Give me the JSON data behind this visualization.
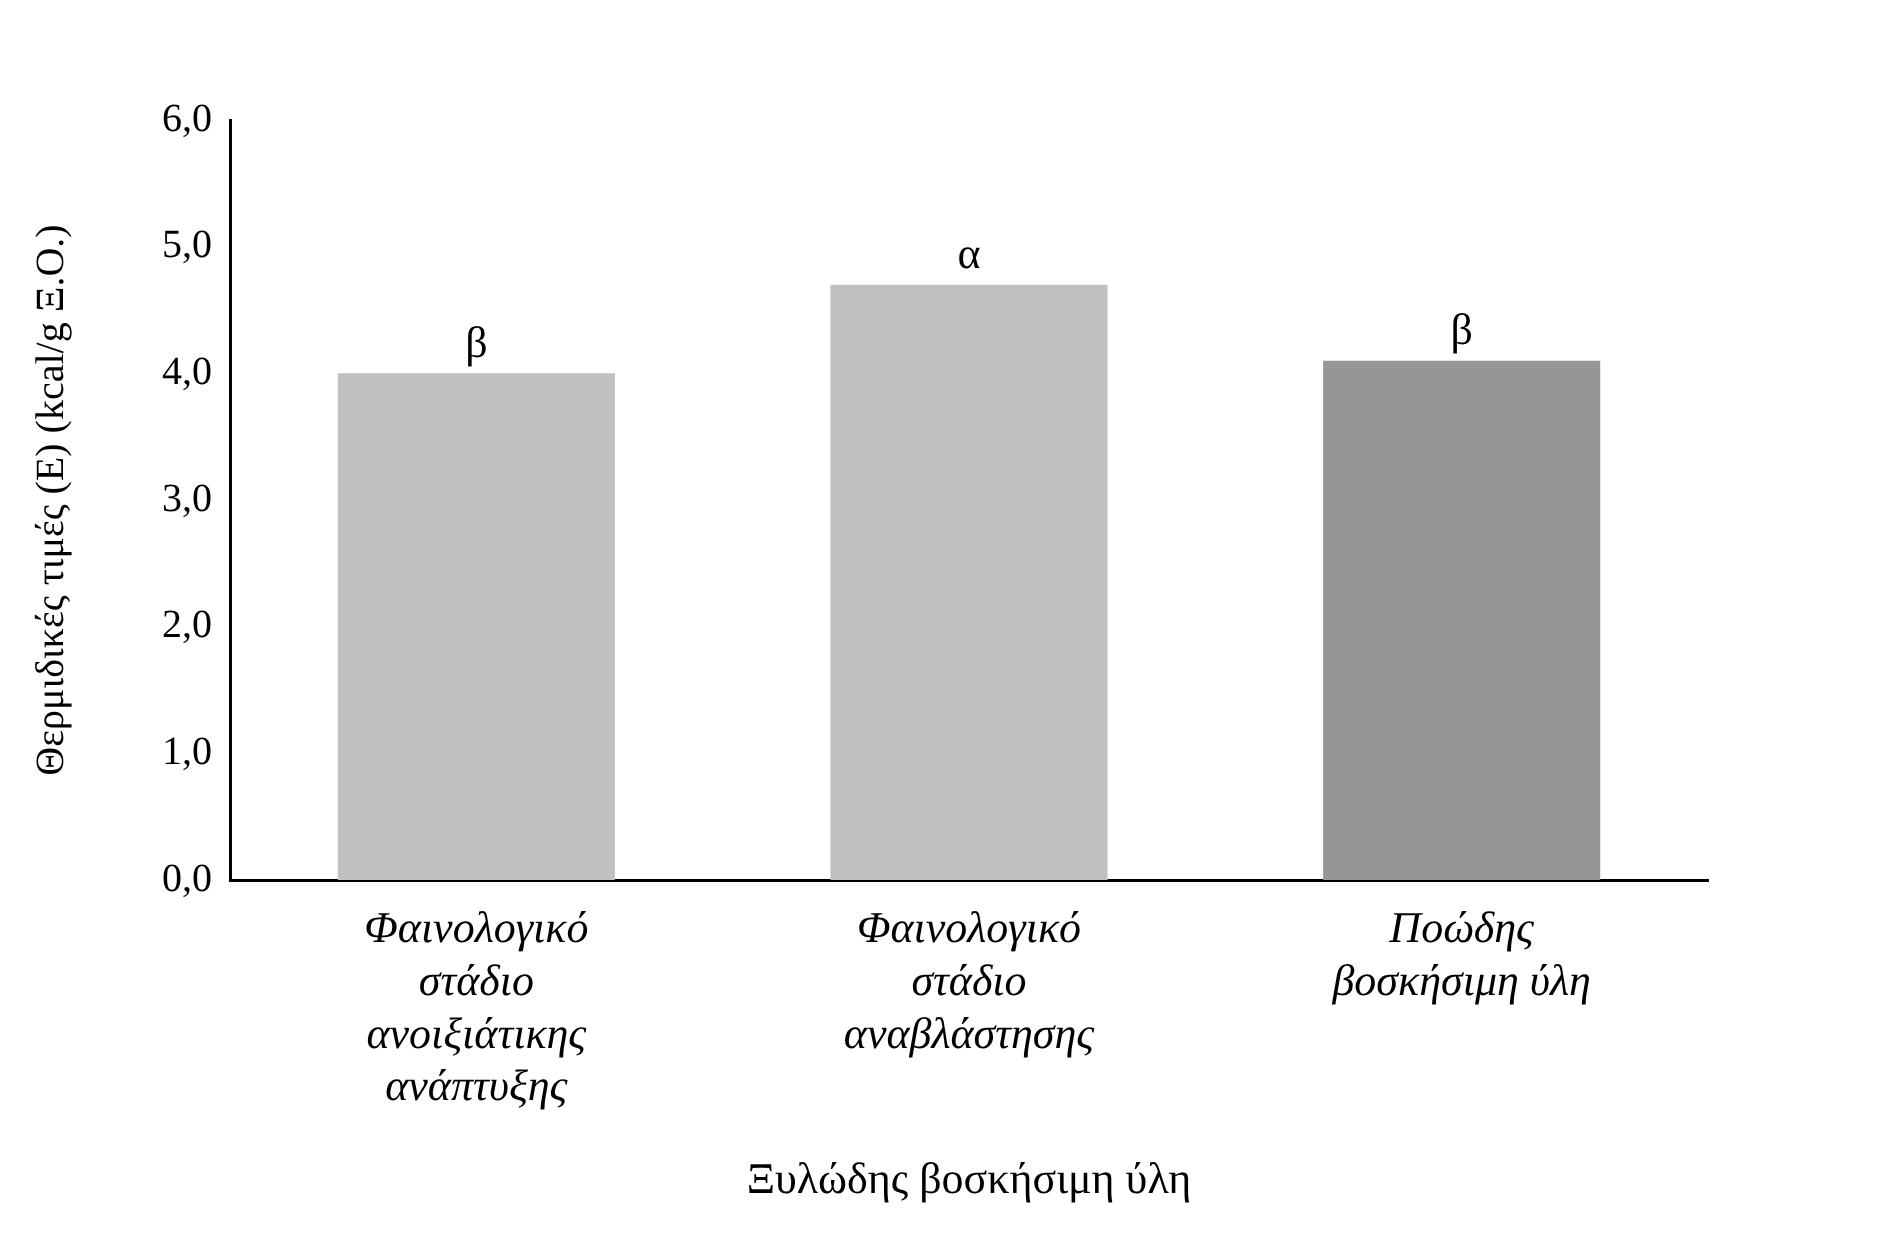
{
  "chart_data": {
    "type": "bar",
    "categories": [
      "Φαινολογικό στάδιο ανοιξιάτικης ανάπτυξης",
      "Φαινολογικό στάδιο αναβλάστησης",
      "Ποώδης βοσκήσιμη ύλη"
    ],
    "values": [
      4.0,
      4.7,
      4.1
    ],
    "colors": [
      "#c0c0c0",
      "#c0c0c0",
      "#969696"
    ],
    "xlabel": "Ξυλώδης βοσκήσιμη ύλη",
    "ylabel": "Θερμιδικές τιμές (Ε) (kcal/g Ξ.Ο.)",
    "ylim": [
      0,
      6
    ],
    "yticks": [
      {
        "value": 0,
        "label": "0,0"
      },
      {
        "value": 1,
        "label": "1,0"
      },
      {
        "value": 2,
        "label": "2,0"
      },
      {
        "value": 3,
        "label": "3,0"
      },
      {
        "value": 4,
        "label": "4,0"
      },
      {
        "value": 5,
        "label": "5,0"
      },
      {
        "value": 6,
        "label": "6,0"
      }
    ],
    "annotations": [
      {
        "text": "β",
        "x": "Φαινολογικό στάδιο ανοιξιάτικης ανάπτυξης",
        "y": 4.0
      },
      {
        "text": "α",
        "x": "Φαινολογικό στάδιο αναβλάστησης",
        "y": 4.7
      },
      {
        "text": "β",
        "x": "Ποώδης βοσκήσιμη ύλη",
        "y": 4.1
      }
    ],
    "grid": false,
    "legend": false
  }
}
